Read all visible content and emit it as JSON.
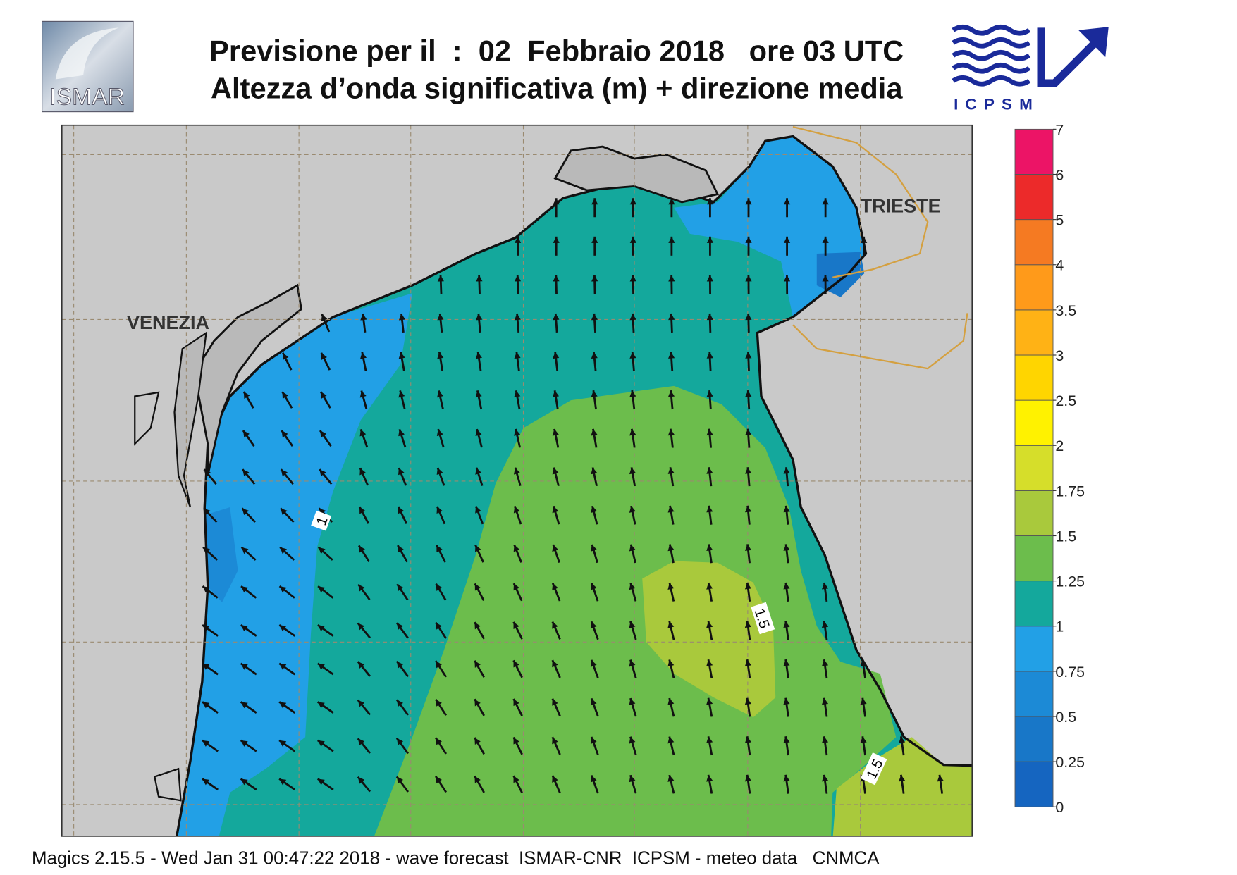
{
  "header": {
    "title": "Previsione per il  :  02  Febbraio 2018   ore 03 UTC",
    "subtitle": "Altezza d’onda significativa (m) + direzione media",
    "logo_left": "ISMAR",
    "logo_right": "ICPSM"
  },
  "map": {
    "place_labels": [
      "VENEZIA",
      "TRIESTE"
    ],
    "contour_labels": [
      "1",
      "1.5",
      "1.5"
    ]
  },
  "legend": {
    "levels": [
      0,
      0.25,
      0.5,
      0.75,
      1,
      1.25,
      1.5,
      1.75,
      2,
      2.5,
      3,
      3.5,
      4,
      5,
      6,
      7
    ],
    "colors": [
      "#1565c0",
      "#1877c8",
      "#1c8ad6",
      "#22a0e6",
      "#14a89c",
      "#6cbd4c",
      "#a9c93c",
      "#d6de2a",
      "#fff200",
      "#ffd500",
      "#ffb215",
      "#ff9a1a",
      "#f57a22",
      "#ec2a2a",
      "#ec1466"
    ]
  },
  "footer": "Magics 2.15.5 - Wed Jan 31 00:47:22 2018 - wave forecast  ISMAR-CNR  ICPSM - meteo data   CNMCA"
}
